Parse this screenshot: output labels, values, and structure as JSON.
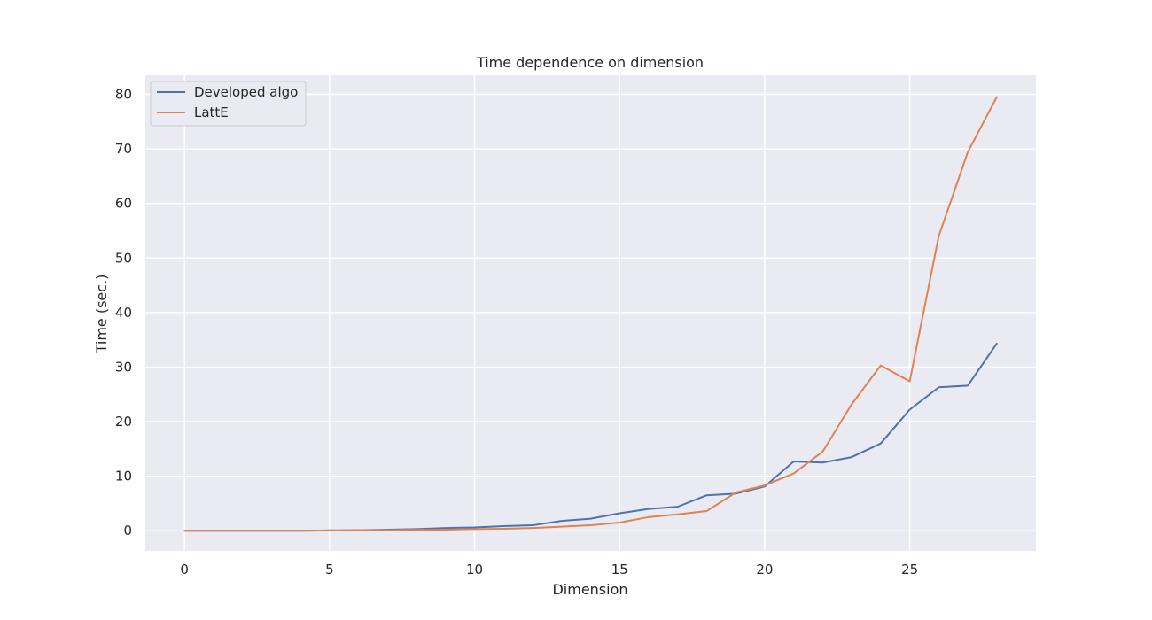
{
  "chart_data": {
    "type": "line",
    "title": "Time dependence on dimension",
    "xlabel": "Dimension",
    "ylabel": "Time (sec.)",
    "xlim": [
      -1.35,
      29.35
    ],
    "ylim": [
      -3.7,
      83.5
    ],
    "xticks": [
      0,
      5,
      10,
      15,
      20,
      25
    ],
    "yticks": [
      0,
      10,
      20,
      30,
      40,
      50,
      60,
      70,
      80
    ],
    "grid": true,
    "legend_position": "top-left",
    "x": [
      0,
      1,
      2,
      3,
      4,
      5,
      6,
      7,
      8,
      9,
      10,
      11,
      12,
      13,
      14,
      15,
      16,
      17,
      18,
      19,
      20,
      21,
      22,
      23,
      24,
      25,
      26,
      27,
      28
    ],
    "series": [
      {
        "name": "Developed algo",
        "color": "#4c72b0",
        "values": [
          0.0,
          0.0,
          0.0,
          0.0,
          0.0,
          0.05,
          0.1,
          0.2,
          0.3,
          0.5,
          0.6,
          0.85,
          1.0,
          1.8,
          2.2,
          3.2,
          4.0,
          4.4,
          6.5,
          6.8,
          8.1,
          12.7,
          12.5,
          13.5,
          16.0,
          22.2,
          26.3,
          26.6,
          34.3
        ]
      },
      {
        "name": "LattE",
        "color": "#dd8452",
        "values": [
          0.0,
          0.0,
          0.0,
          0.0,
          0.0,
          0.05,
          0.1,
          0.1,
          0.15,
          0.2,
          0.3,
          0.35,
          0.5,
          0.75,
          1.0,
          1.5,
          2.5,
          3.0,
          3.6,
          7.0,
          8.3,
          10.5,
          14.5,
          23.2,
          30.3,
          27.4,
          54.0,
          69.4,
          79.5
        ]
      }
    ]
  }
}
